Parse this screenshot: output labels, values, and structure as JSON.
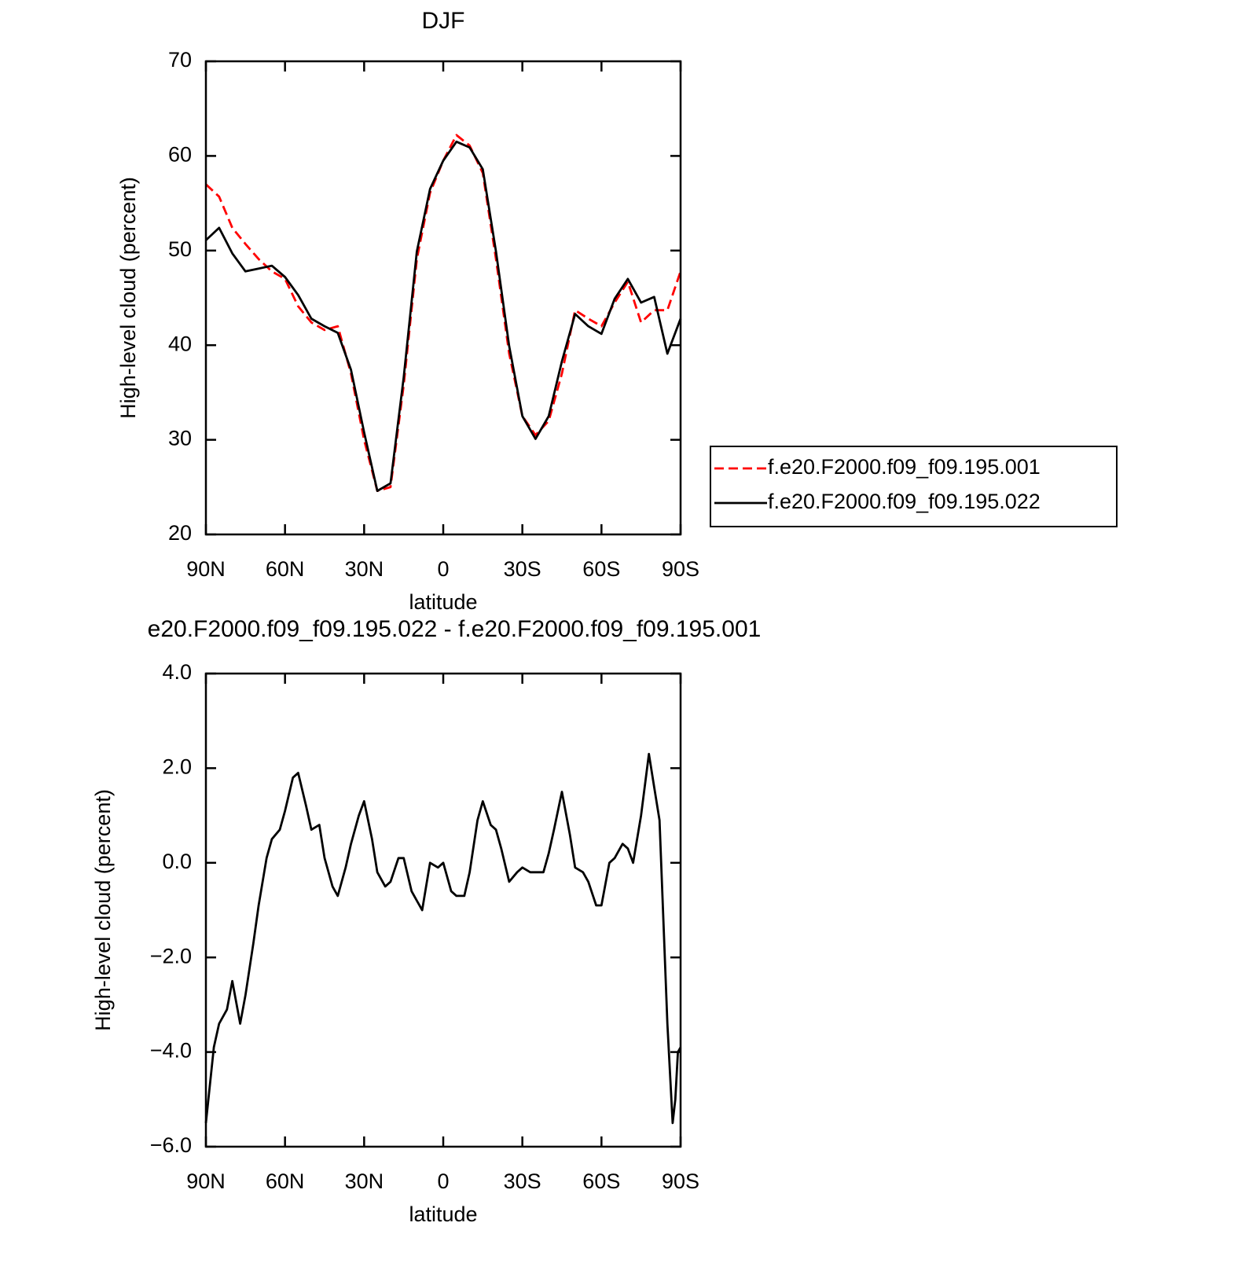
{
  "chart_data": [
    {
      "type": "line",
      "title": "DJF",
      "xlabel": "latitude",
      "ylabel": "High-level cloud (percent)",
      "x": [
        90,
        85,
        80,
        75,
        70,
        65,
        60,
        55,
        50,
        45,
        40,
        35,
        30,
        25,
        20,
        15,
        10,
        5,
        0,
        -5,
        -10,
        -15,
        -20,
        -25,
        -30,
        -35,
        -40,
        -45,
        -50,
        -55,
        -60,
        -65,
        -70,
        -75,
        -80,
        -85,
        -90
      ],
      "series": [
        {
          "name": "f.e20.F2000.f09_f09.195.001",
          "color": "#ff0000",
          "dash": true,
          "values": [
            57.0,
            55.7,
            52.4,
            50.7,
            49.1,
            47.8,
            47.0,
            44.1,
            42.4,
            41.6,
            42.0,
            37.0,
            30.0,
            24.6,
            25.0,
            35.8,
            49.1,
            56.1,
            59.5,
            62.2,
            61.1,
            58.2,
            49.1,
            39.1,
            32.5,
            30.5,
            32.0,
            37.0,
            43.7,
            42.8,
            42.0,
            44.5,
            46.7,
            42.4,
            43.7,
            43.7,
            47.8
          ]
        },
        {
          "name": "f.e20.F2000.f09_f09.195.022",
          "color": "#000000",
          "dash": false,
          "values": [
            51.1,
            52.4,
            49.7,
            47.8,
            48.1,
            48.4,
            47.2,
            45.3,
            42.8,
            42.0,
            41.3,
            37.4,
            30.8,
            24.6,
            25.4,
            36.6,
            49.9,
            56.5,
            59.5,
            61.5,
            60.9,
            58.6,
            49.9,
            39.9,
            32.5,
            30.1,
            32.5,
            38.3,
            43.3,
            42.0,
            41.2,
            44.9,
            47.0,
            44.5,
            45.1,
            39.1,
            42.8
          ]
        }
      ],
      "xlim": [
        90,
        -90
      ],
      "xticks": [
        {
          "value": 90,
          "label": "90N"
        },
        {
          "value": 60,
          "label": "60N"
        },
        {
          "value": 30,
          "label": "30N"
        },
        0,
        {
          "value": -30,
          "label": "30S"
        },
        {
          "value": -60,
          "label": "60S"
        },
        {
          "value": -90,
          "label": "90S"
        }
      ],
      "ylim": [
        20,
        70
      ],
      "yticks": [
        20,
        30,
        40,
        50,
        60,
        70
      ],
      "legend": "right"
    },
    {
      "type": "line",
      "title": "e20.F2000.f09_f09.195.022 - f.e20.F2000.f09_f09.195.001",
      "xlabel": "latitude",
      "ylabel": "High-level cloud (percent)",
      "x": [
        90,
        87,
        85,
        82,
        80,
        77,
        75,
        72,
        70,
        67,
        65,
        62,
        60,
        57,
        55,
        52,
        50,
        47,
        45,
        42,
        40,
        37,
        35,
        32,
        30,
        27,
        25,
        22,
        20,
        17,
        15,
        12,
        10,
        8,
        5,
        2,
        0,
        -3,
        -5,
        -8,
        -10,
        -13,
        -15,
        -18,
        -20,
        -22,
        -25,
        -28,
        -30,
        -33,
        -35,
        -38,
        -40,
        -42,
        -45,
        -48,
        -50,
        -53,
        -55,
        -58,
        -60,
        -63,
        -65,
        -68,
        -70,
        -72,
        -75,
        -78,
        -80,
        -82,
        -85,
        -87,
        -88,
        -89,
        -90
      ],
      "series": [
        {
          "color": "#000000",
          "dash": false,
          "values": [
            -5.5,
            -3.9,
            -3.4,
            -3.1,
            -2.5,
            -3.4,
            -2.8,
            -1.7,
            -0.9,
            0.1,
            0.5,
            0.7,
            1.1,
            1.8,
            1.9,
            1.2,
            0.7,
            0.8,
            0.1,
            -0.5,
            -0.7,
            -0.1,
            0.4,
            1.0,
            1.3,
            0.5,
            -0.2,
            -0.5,
            -0.4,
            0.1,
            0.1,
            -0.6,
            -0.8,
            -1.0,
            0.0,
            -0.1,
            0.0,
            -0.6,
            -0.7,
            -0.7,
            -0.2,
            0.9,
            1.3,
            0.8,
            0.7,
            0.3,
            -0.4,
            -0.2,
            -0.1,
            -0.2,
            -0.2,
            -0.2,
            0.2,
            0.7,
            1.5,
            0.6,
            -0.1,
            -0.2,
            -0.4,
            -0.9,
            -0.9,
            0.0,
            0.1,
            0.4,
            0.3,
            0.0,
            1.0,
            2.3,
            1.6,
            0.9,
            -3.4,
            -5.5,
            -5.0,
            -4.0,
            -3.9
          ]
        }
      ],
      "xlim": [
        90,
        -90
      ],
      "xticks": [
        {
          "value": 90,
          "label": "90N"
        },
        {
          "value": 60,
          "label": "60N"
        },
        {
          "value": 30,
          "label": "30N"
        },
        0,
        {
          "value": -30,
          "label": "30S"
        },
        {
          "value": -60,
          "label": "60S"
        },
        {
          "value": -90,
          "label": "90S"
        }
      ],
      "ylim": [
        -6,
        4
      ],
      "yticks": [
        {
          "value": -6,
          "label": "−6.0"
        },
        {
          "value": -4,
          "label": "−4.0"
        },
        {
          "value": -2,
          "label": "−2.0"
        },
        {
          "value": 0,
          "label": "0.0"
        },
        {
          "value": 2,
          "label": "2.0"
        },
        {
          "value": 4,
          "label": "4.0"
        }
      ]
    }
  ]
}
